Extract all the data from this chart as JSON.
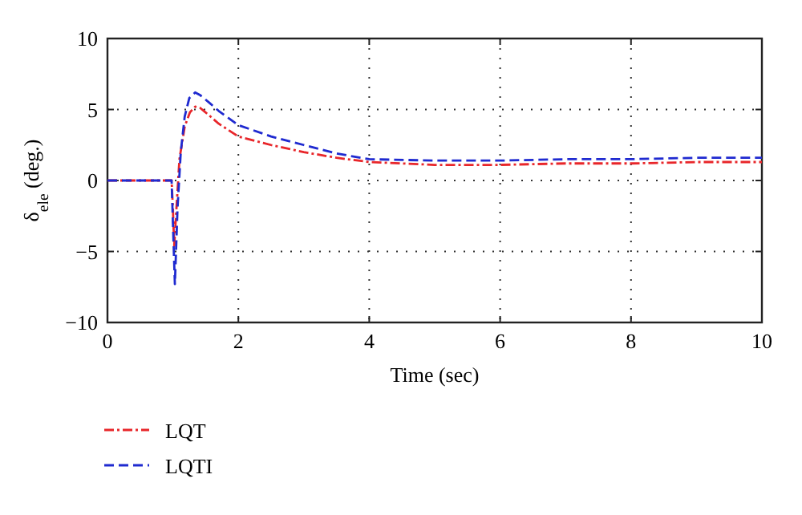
{
  "chart_data": {
    "type": "line",
    "xlabel": "Time (sec)",
    "ylabel": "δ$_{ele}$ (deg.)",
    "xlim": [
      0,
      10
    ],
    "ylim": [
      -10,
      10
    ],
    "xticks": [
      0,
      2,
      4,
      6,
      8,
      10
    ],
    "yticks": [
      -10,
      -5,
      0,
      5,
      10
    ],
    "grid": true,
    "legend": "bottom left",
    "series": [
      {
        "name": "LQT",
        "color": "#e8262a",
        "line_style": "dashdot",
        "x": [
          0,
          0.98,
          1.0,
          1.02,
          1.06,
          1.1,
          1.18,
          1.26,
          1.34,
          1.42,
          1.55,
          1.7,
          2,
          2.5,
          3,
          3.5,
          4,
          5,
          6,
          7,
          8,
          9,
          10
        ],
        "values": [
          0,
          0,
          -2,
          -4.6,
          -1.5,
          1.5,
          3.8,
          4.8,
          5.2,
          5.1,
          4.6,
          4.0,
          3.1,
          2.5,
          2.0,
          1.6,
          1.3,
          1.1,
          1.1,
          1.2,
          1.2,
          1.3,
          1.3
        ]
      },
      {
        "name": "LQTI",
        "color": "#1f2ad0",
        "line_style": "dashed",
        "x": [
          0,
          0.98,
          1.0,
          1.03,
          1.07,
          1.12,
          1.18,
          1.25,
          1.34,
          1.42,
          1.55,
          1.7,
          2,
          2.5,
          3,
          3.5,
          4,
          5,
          6,
          7,
          8,
          9,
          10
        ],
        "values": [
          0,
          0,
          -3,
          -7.3,
          -2,
          2,
          4.5,
          5.8,
          6.2,
          6.0,
          5.5,
          4.9,
          3.9,
          3.1,
          2.5,
          1.9,
          1.5,
          1.4,
          1.4,
          1.5,
          1.5,
          1.6,
          1.6
        ]
      }
    ]
  }
}
